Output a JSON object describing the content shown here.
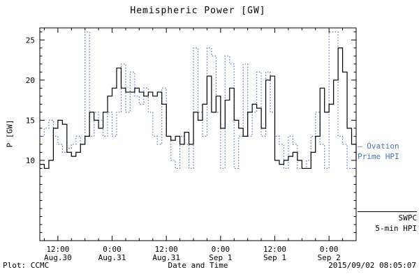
{
  "title": "Hemispheric Power [GW]",
  "footer": {
    "left": "Plot: CCMC",
    "right": "2015/09/02 08:05:07"
  },
  "legend": {
    "ovation": {
      "line1": "– Ovation",
      "line2": "Prime HPI",
      "color": "#4a74ba"
    },
    "swpc": {
      "line1": "SWPC",
      "line2": "5-min HPI",
      "color": "#000000"
    }
  },
  "chart_data": {
    "type": "line",
    "title": "Hemispheric Power [GW]",
    "xlabel": "Date and Time",
    "ylabel": "P [GW]",
    "ylim": [
      0,
      26.5
    ],
    "xlim_hours": [
      0,
      70
    ],
    "yticks": [
      10,
      15,
      20,
      25
    ],
    "xticks": [
      {
        "hour": 4,
        "time": "12:00",
        "date": "Aug.30"
      },
      {
        "hour": 16,
        "time": "0:00",
        "date": "Aug.31"
      },
      {
        "hour": 28,
        "time": "12:00",
        "date": "Aug.31"
      },
      {
        "hour": 40,
        "time": "0:00",
        "date": "Sep 1"
      },
      {
        "hour": 52,
        "time": "12:00",
        "date": "Sep 1"
      },
      {
        "hour": 64,
        "time": "0:00",
        "date": "Sep 2"
      }
    ],
    "x_hours": [
      0,
      1,
      2,
      3,
      4,
      5,
      6,
      7,
      8,
      9,
      10,
      11,
      12,
      13,
      14,
      15,
      16,
      17,
      18,
      19,
      20,
      21,
      22,
      23,
      24,
      25,
      26,
      27,
      28,
      29,
      30,
      31,
      32,
      33,
      34,
      35,
      36,
      37,
      38,
      39,
      40,
      41,
      42,
      43,
      44,
      45,
      46,
      47,
      48,
      49,
      50,
      51,
      52,
      53,
      54,
      55,
      56,
      57,
      58,
      59,
      60,
      61,
      62,
      63,
      64,
      65,
      66,
      67,
      68,
      69,
      70
    ],
    "series": [
      {
        "name": "Ovation Prime HPI",
        "color": "#4a74ba",
        "style": "dotted",
        "values": [
          13,
          14,
          15,
          13,
          12,
          11,
          11.5,
          12,
          13,
          12,
          26,
          13,
          16,
          15,
          13,
          16,
          13,
          16,
          22,
          16,
          21,
          18,
          17,
          19,
          16,
          13,
          12,
          19,
          13,
          10,
          9,
          13,
          12,
          9,
          24,
          16,
          13,
          24,
          23,
          16,
          9,
          23,
          22,
          9,
          13,
          22,
          13,
          16,
          21,
          13,
          21,
          16,
          13,
          12,
          9,
          13,
          12,
          9,
          9,
          10,
          13,
          16,
          12,
          9,
          26,
          26,
          13,
          12,
          9,
          9,
          9
        ]
      },
      {
        "name": "SWPC 5-min HPI",
        "color": "#000000",
        "style": "solid",
        "values": [
          9.5,
          9,
          10,
          14,
          15,
          14.5,
          11,
          10.5,
          11,
          12,
          13,
          16,
          15,
          14,
          16,
          18,
          19,
          21.5,
          19,
          18.5,
          18.5,
          19,
          18.5,
          18,
          18.5,
          18,
          18.5,
          17,
          13,
          12.5,
          13,
          12,
          13.5,
          12,
          16,
          15,
          17,
          20.5,
          16,
          18,
          14,
          17.5,
          19,
          15,
          14,
          13,
          16,
          17,
          16.5,
          14,
          20,
          20.5,
          10,
          9.5,
          10,
          10.5,
          11,
          10,
          9,
          9,
          11,
          13,
          19,
          16,
          17,
          20,
          24,
          21,
          14,
          12,
          10
        ]
      }
    ],
    "legend_position": "right-outside",
    "grid": false
  }
}
